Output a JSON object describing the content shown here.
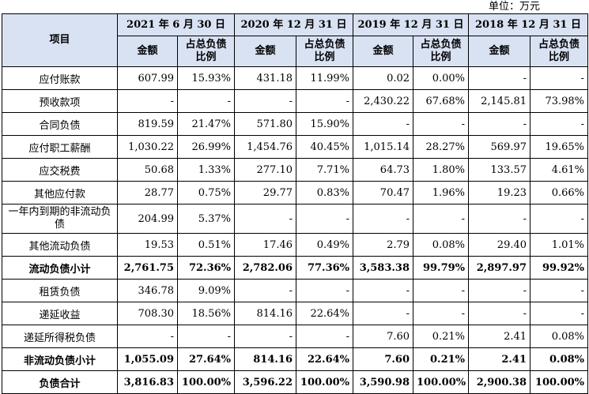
{
  "unit_label": "单位：万元",
  "header": {
    "item": "项目",
    "periods": [
      "2021 年 6 月 30 日",
      "2020 年 12 月 31 日",
      "2019 年 12 月 31 日",
      "2018 年 12 月 31 日"
    ],
    "amount": "金额",
    "ratio_line1": "占总负债",
    "ratio_line2": "比例"
  },
  "rows": [
    {
      "label": "应付账款",
      "cells": [
        "607.99",
        "15.93%",
        "431.18",
        "11.99%",
        "0.02",
        "0.00%",
        "-",
        "-"
      ]
    },
    {
      "label": "预收款项",
      "cells": [
        "-",
        "-",
        "-",
        "-",
        "2,430.22",
        "67.68%",
        "2,145.81",
        "73.98%"
      ]
    },
    {
      "label": "合同负债",
      "cells": [
        "819.59",
        "21.47%",
        "571.80",
        "15.90%",
        "-",
        "-",
        "-",
        "-"
      ]
    },
    {
      "label": "应付职工薪酬",
      "cells": [
        "1,030.22",
        "26.99%",
        "1,454.76",
        "40.45%",
        "1,015.14",
        "28.27%",
        "569.97",
        "19.65%"
      ]
    },
    {
      "label": "应交税费",
      "cells": [
        "50.68",
        "1.33%",
        "277.10",
        "7.71%",
        "64.73",
        "1.80%",
        "133.57",
        "4.61%"
      ]
    },
    {
      "label": "其他应付款",
      "cells": [
        "28.77",
        "0.75%",
        "29.77",
        "0.83%",
        "70.47",
        "1.96%",
        "19.23",
        "0.66%"
      ]
    },
    {
      "label": "一年内到期的非流动负债",
      "cells": [
        "204.99",
        "5.37%",
        "-",
        "-",
        "-",
        "-",
        "-",
        "-"
      ]
    },
    {
      "label": "其他流动负债",
      "cells": [
        "19.53",
        "0.51%",
        "17.46",
        "0.49%",
        "2.79",
        "0.08%",
        "29.40",
        "1.01%"
      ]
    },
    {
      "label": "流动负债小计",
      "cells": [
        "2,761.75",
        "72.36%",
        "2,782.06",
        "77.36%",
        "3,583.38",
        "99.79%",
        "2,897.97",
        "99.92%"
      ]
    },
    {
      "label": "租赁负债",
      "cells": [
        "346.78",
        "9.09%",
        "-",
        "-",
        "-",
        "-",
        "-",
        "-"
      ]
    },
    {
      "label": "递延收益",
      "cells": [
        "708.30",
        "18.56%",
        "814.16",
        "22.64%",
        "-",
        "-",
        "-",
        "-"
      ]
    },
    {
      "label": "递延所得税负债",
      "cells": [
        "-",
        "-",
        "-",
        "-",
        "7.60",
        "0.21%",
        "2.41",
        "0.08%"
      ]
    },
    {
      "label": "非流动负债小计",
      "cells": [
        "1,055.09",
        "27.64%",
        "814.16",
        "22.64%",
        "7.60",
        "0.21%",
        "2.41",
        "0.08%"
      ]
    },
    {
      "label": "负债合计",
      "cells": [
        "3,816.83",
        "100.00%",
        "3,596.22",
        "100.00%",
        "3,590.98",
        "100.00%",
        "2,900.38",
        "100.00%"
      ]
    }
  ]
}
